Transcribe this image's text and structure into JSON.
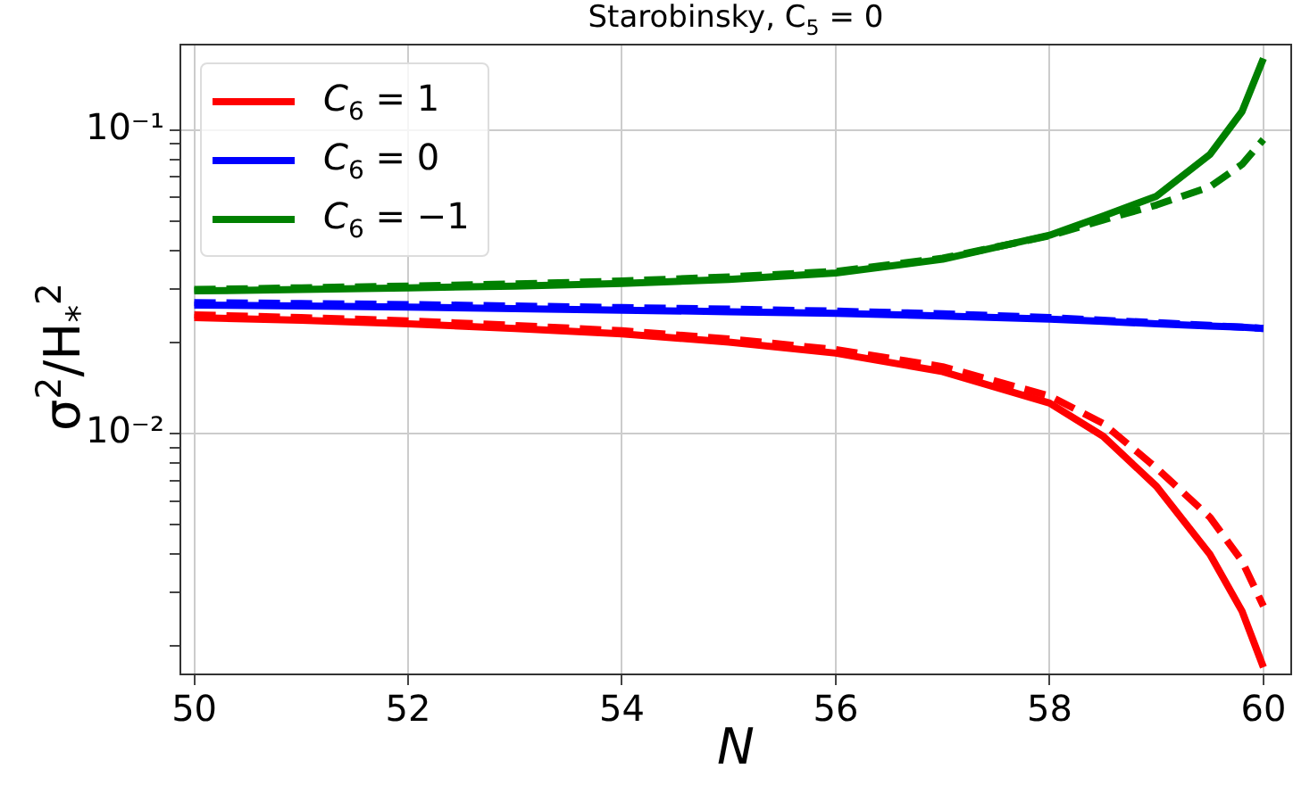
{
  "chart_data": {
    "type": "line",
    "title": "Starobinsky, C$_{5}$ = 0",
    "xlabel": "N",
    "ylabel": "σ$^{2}$/H$_{*}$$^{2}$",
    "x": [
      50,
      51,
      52,
      53,
      54,
      55,
      56,
      57,
      58,
      58.5,
      59,
      59.5,
      59.8,
      60
    ],
    "series": [
      {
        "name": "C$_{6}$ = 1",
        "color": "#ff0000",
        "line_style": "solid",
        "values": [
          0.0241,
          0.0236,
          0.023,
          0.0222,
          0.0213,
          0.02,
          0.0184,
          0.016,
          0.0126,
          0.0098,
          0.0067,
          0.004,
          0.0026,
          0.0017
        ]
      },
      {
        "name": "C$_{6}$ = 0",
        "color": "#0000ff",
        "line_style": "solid",
        "values": [
          0.0265,
          0.0263,
          0.0261,
          0.0258,
          0.0255,
          0.0252,
          0.0249,
          0.0244,
          0.0238,
          0.0234,
          0.023,
          0.0226,
          0.0224,
          0.0222
        ]
      },
      {
        "name": "C$_{6}$ = −1",
        "color": "#008000",
        "line_style": "solid",
        "values": [
          0.0295,
          0.0298,
          0.0302,
          0.0306,
          0.0312,
          0.0322,
          0.0338,
          0.0375,
          0.045,
          0.052,
          0.0605,
          0.083,
          0.115,
          0.172
        ]
      },
      {
        "color": "#ff0000",
        "line_style": "dashed",
        "values": [
          0.0246,
          0.0241,
          0.0235,
          0.0227,
          0.0218,
          0.0205,
          0.0189,
          0.0166,
          0.0133,
          0.0108,
          0.0077,
          0.0053,
          0.0038,
          0.0027
        ]
      },
      {
        "color": "#0000ff",
        "line_style": "dashed",
        "values": [
          0.027,
          0.0268,
          0.0266,
          0.0263,
          0.026,
          0.0257,
          0.0253,
          0.0248,
          0.0241,
          0.0236,
          0.0232,
          0.0227,
          0.0224,
          0.0222
        ]
      },
      {
        "color": "#008000",
        "line_style": "dashed",
        "values": [
          0.0298,
          0.0302,
          0.0306,
          0.0311,
          0.0318,
          0.0328,
          0.0342,
          0.0378,
          0.0448,
          0.0505,
          0.0566,
          0.065,
          0.077,
          0.093
        ]
      }
    ],
    "log": "y",
    "xlim": [
      49.87,
      60.26
    ],
    "ylim": [
      0.00161,
      0.191
    ],
    "xticks": [
      50,
      52,
      54,
      56,
      58,
      60
    ],
    "yticks": [
      {
        "value": 0.002,
        "label": null
      },
      {
        "value": 0.003,
        "label": null
      },
      {
        "value": 0.004,
        "label": null
      },
      {
        "value": 0.005,
        "label": null
      },
      {
        "value": 0.006,
        "label": null
      },
      {
        "value": 0.007,
        "label": null
      },
      {
        "value": 0.008,
        "label": null
      },
      {
        "value": 0.009,
        "label": null
      },
      {
        "value": 0.01,
        "label": "10⁻²"
      },
      {
        "value": 0.02,
        "label": null
      },
      {
        "value": 0.03,
        "label": null
      },
      {
        "value": 0.04,
        "label": null
      },
      {
        "value": 0.05,
        "label": null
      },
      {
        "value": 0.06,
        "label": null
      },
      {
        "value": 0.07,
        "label": null
      },
      {
        "value": 0.08,
        "label": null
      },
      {
        "value": 0.09,
        "label": null
      },
      {
        "value": 0.1,
        "label": "10⁻¹"
      }
    ],
    "grid": true,
    "legend": "top left",
    "marker": "none"
  }
}
